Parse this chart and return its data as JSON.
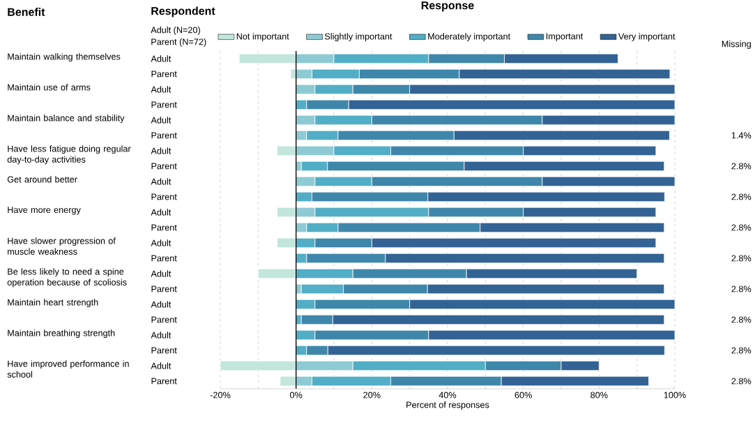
{
  "chart_data": {
    "type": "bar",
    "orientation": "horizontal",
    "stacked": true,
    "title": "Response",
    "xlabel": "Percent of responses",
    "categories": [
      "Adult",
      "Parent",
      "Adult",
      "Parent",
      "Adult",
      "Parent",
      "Adult",
      "Parent",
      "Adult",
      "Parent",
      "Adult",
      "Parent",
      "Adult",
      "Parent",
      "Adult",
      "Parent",
      "Adult",
      "Parent",
      "Adult",
      "Parent",
      "Adult",
      "Parent"
    ],
    "series": [
      {
        "name": "Not important",
        "color": "#c2e6dc",
        "values": [
          -15,
          -1.4,
          0,
          0,
          0,
          0,
          -5,
          0,
          0,
          0,
          -5,
          0,
          -5,
          0,
          -10,
          0,
          0,
          0,
          0,
          0,
          -20,
          -4.2
        ]
      },
      {
        "name": "Slightly important",
        "color": "#8ecad4",
        "values": [
          10,
          4.2,
          5,
          0,
          5,
          2.8,
          10,
          1.4,
          5,
          0,
          5,
          2.8,
          0,
          0,
          0,
          1.4,
          0,
          0,
          0,
          0,
          15,
          4.2
        ]
      },
      {
        "name": "Moderately important",
        "color": "#52aec6",
        "values": [
          25,
          12.5,
          10,
          2.8,
          15,
          8.3,
          15,
          6.9,
          15,
          4.2,
          30,
          8.3,
          5,
          2.8,
          15,
          11.1,
          5,
          1.4,
          5,
          2.8,
          35,
          20.8
        ]
      },
      {
        "name": "Important",
        "color": "#3f87aa",
        "values": [
          20,
          26.4,
          15,
          11.1,
          45,
          30.6,
          35,
          36.1,
          45,
          30.6,
          25,
          37.5,
          15,
          20.8,
          30,
          22.2,
          25,
          8.3,
          30,
          5.6,
          20,
          29.2
        ]
      },
      {
        "name": "Very important",
        "color": "#336394",
        "values": [
          30,
          55.6,
          70,
          86.1,
          35,
          56.9,
          35,
          52.8,
          35,
          62.5,
          35,
          48.6,
          75,
          73.6,
          45,
          62.5,
          70,
          87.5,
          65,
          88.9,
          10,
          38.9
        ]
      }
    ],
    "xlim": [
      -20,
      100
    ],
    "xticks": [
      {
        "value": -20,
        "label": "-20%"
      },
      {
        "value": -10,
        "label": null
      },
      {
        "value": 0,
        "label": "0%"
      },
      {
        "value": 10,
        "label": null
      },
      {
        "value": 20,
        "label": "20%"
      },
      {
        "value": 30,
        "label": null
      },
      {
        "value": 40,
        "label": "40%"
      },
      {
        "value": 50,
        "label": null
      },
      {
        "value": 60,
        "label": "60%"
      },
      {
        "value": 70,
        "label": null
      },
      {
        "value": 80,
        "label": "80%"
      },
      {
        "value": 90,
        "label": null
      },
      {
        "value": 100,
        "label": "100%"
      }
    ],
    "grid": "x",
    "legend": "top",
    "ref_lines": [
      {
        "axis": "x",
        "value": 0,
        "color": "#000000"
      }
    ],
    "annotations": [
      "Benefit",
      "Respondent",
      "Adult (N=20)",
      "Parent (N=72)",
      "Missing",
      "Maintain walking themselves",
      "Maintain use of arms",
      "Maintain balance and stability",
      "Have less fatigue doing regular day-to-day activities",
      "Get around better",
      "Have more energy",
      "Have slower progression of muscle weakness",
      "Be less likely to need a spine operation because of scoliosis",
      "Maintain heart strength",
      "Maintain breathing strength",
      "Have improved performance in school",
      "1.4%",
      "2.8%",
      "2.8%",
      "2.8%",
      "2.8%",
      "2.8%",
      "2.8%",
      "2.8%",
      "2.8%"
    ]
  }
}
